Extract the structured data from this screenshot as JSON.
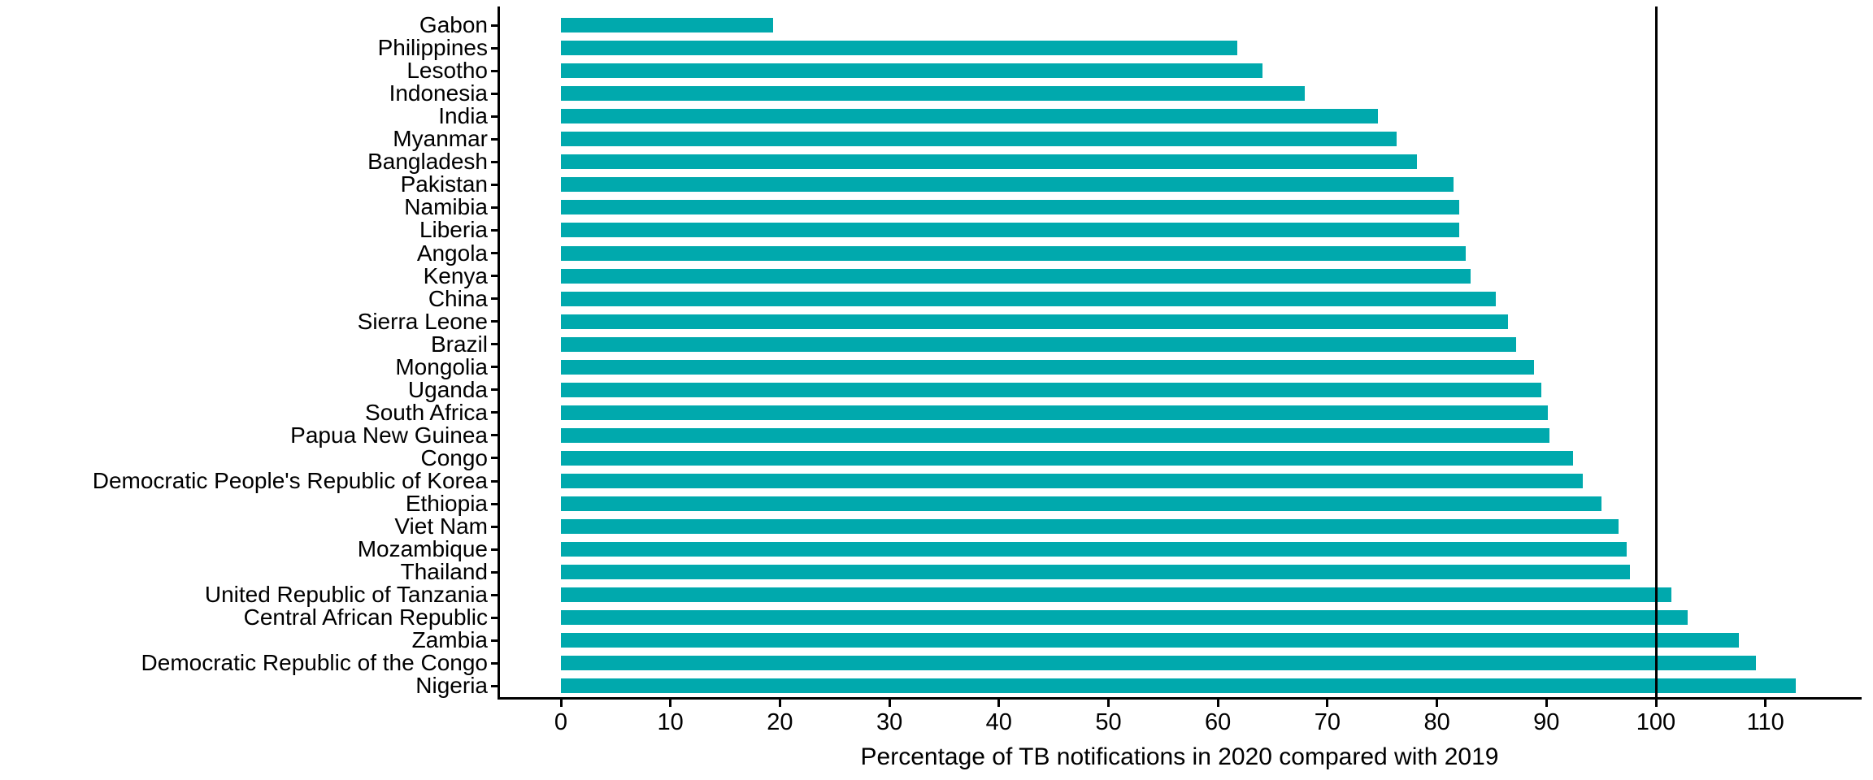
{
  "chart_data": {
    "type": "bar",
    "orientation": "horizontal",
    "title": "",
    "xlabel": "Percentage of TB notifications in 2020 compared with 2019",
    "ylabel": "",
    "xlim": [
      0,
      113
    ],
    "x_ticks": [
      0,
      10,
      20,
      30,
      40,
      50,
      60,
      70,
      80,
      90,
      100,
      110
    ],
    "reference_line_x": 100,
    "grid": false,
    "legend": "none",
    "bar_color": "#00A9AD",
    "axis_color": "#000000",
    "categories": [
      "Gabon",
      "Philippines",
      "Lesotho",
      "Indonesia",
      "India",
      "Myanmar",
      "Bangladesh",
      "Pakistan",
      "Namibia",
      "Liberia",
      "Angola",
      "Kenya",
      "China",
      "Sierra Leone",
      "Brazil",
      "Mongolia",
      "Uganda",
      "South Africa",
      "Papua New Guinea",
      "Congo",
      "Democratic People's Republic of Korea",
      "Ethiopia",
      "Viet Nam",
      "Mozambique",
      "Thailand",
      "United Republic of Tanzania",
      "Central African Republic",
      "Zambia",
      "Democratic Republic of the Congo",
      "Nigeria"
    ],
    "values": [
      19.4,
      61.8,
      64.1,
      67.9,
      74.6,
      76.3,
      78.2,
      81.5,
      82.0,
      82.0,
      82.6,
      83.1,
      85.4,
      86.5,
      87.2,
      88.9,
      89.5,
      90.1,
      90.3,
      92.4,
      93.3,
      95.0,
      96.6,
      97.3,
      97.6,
      101.4,
      102.9,
      107.6,
      109.1,
      112.8
    ]
  }
}
